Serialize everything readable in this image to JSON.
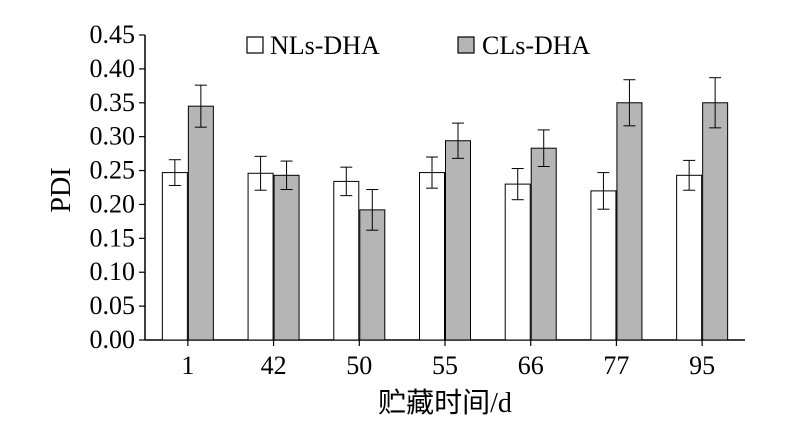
{
  "chart_data": {
    "type": "bar",
    "title": "",
    "xlabel": "贮藏时间/d",
    "ylabel": "PDI",
    "ylim": [
      0.0,
      0.45
    ],
    "yticks": [
      "0.00",
      "0.05",
      "0.10",
      "0.15",
      "0.20",
      "0.25",
      "0.30",
      "0.35",
      "0.40",
      "0.45"
    ],
    "categories": [
      "1",
      "42",
      "50",
      "55",
      "66",
      "77",
      "95"
    ],
    "legend_position": "top",
    "error_bars": true,
    "series": [
      {
        "name": "NLs-DHA",
        "color": "#ffffff",
        "values": [
          0.247,
          0.246,
          0.234,
          0.247,
          0.23,
          0.22,
          0.243
        ],
        "errors": [
          0.019,
          0.025,
          0.021,
          0.023,
          0.023,
          0.027,
          0.022
        ]
      },
      {
        "name": "CLs-DHA",
        "color": "#b5b5b5",
        "values": [
          0.345,
          0.243,
          0.192,
          0.294,
          0.283,
          0.35,
          0.35
        ],
        "errors": [
          0.031,
          0.021,
          0.03,
          0.026,
          0.027,
          0.034,
          0.037
        ]
      }
    ]
  }
}
